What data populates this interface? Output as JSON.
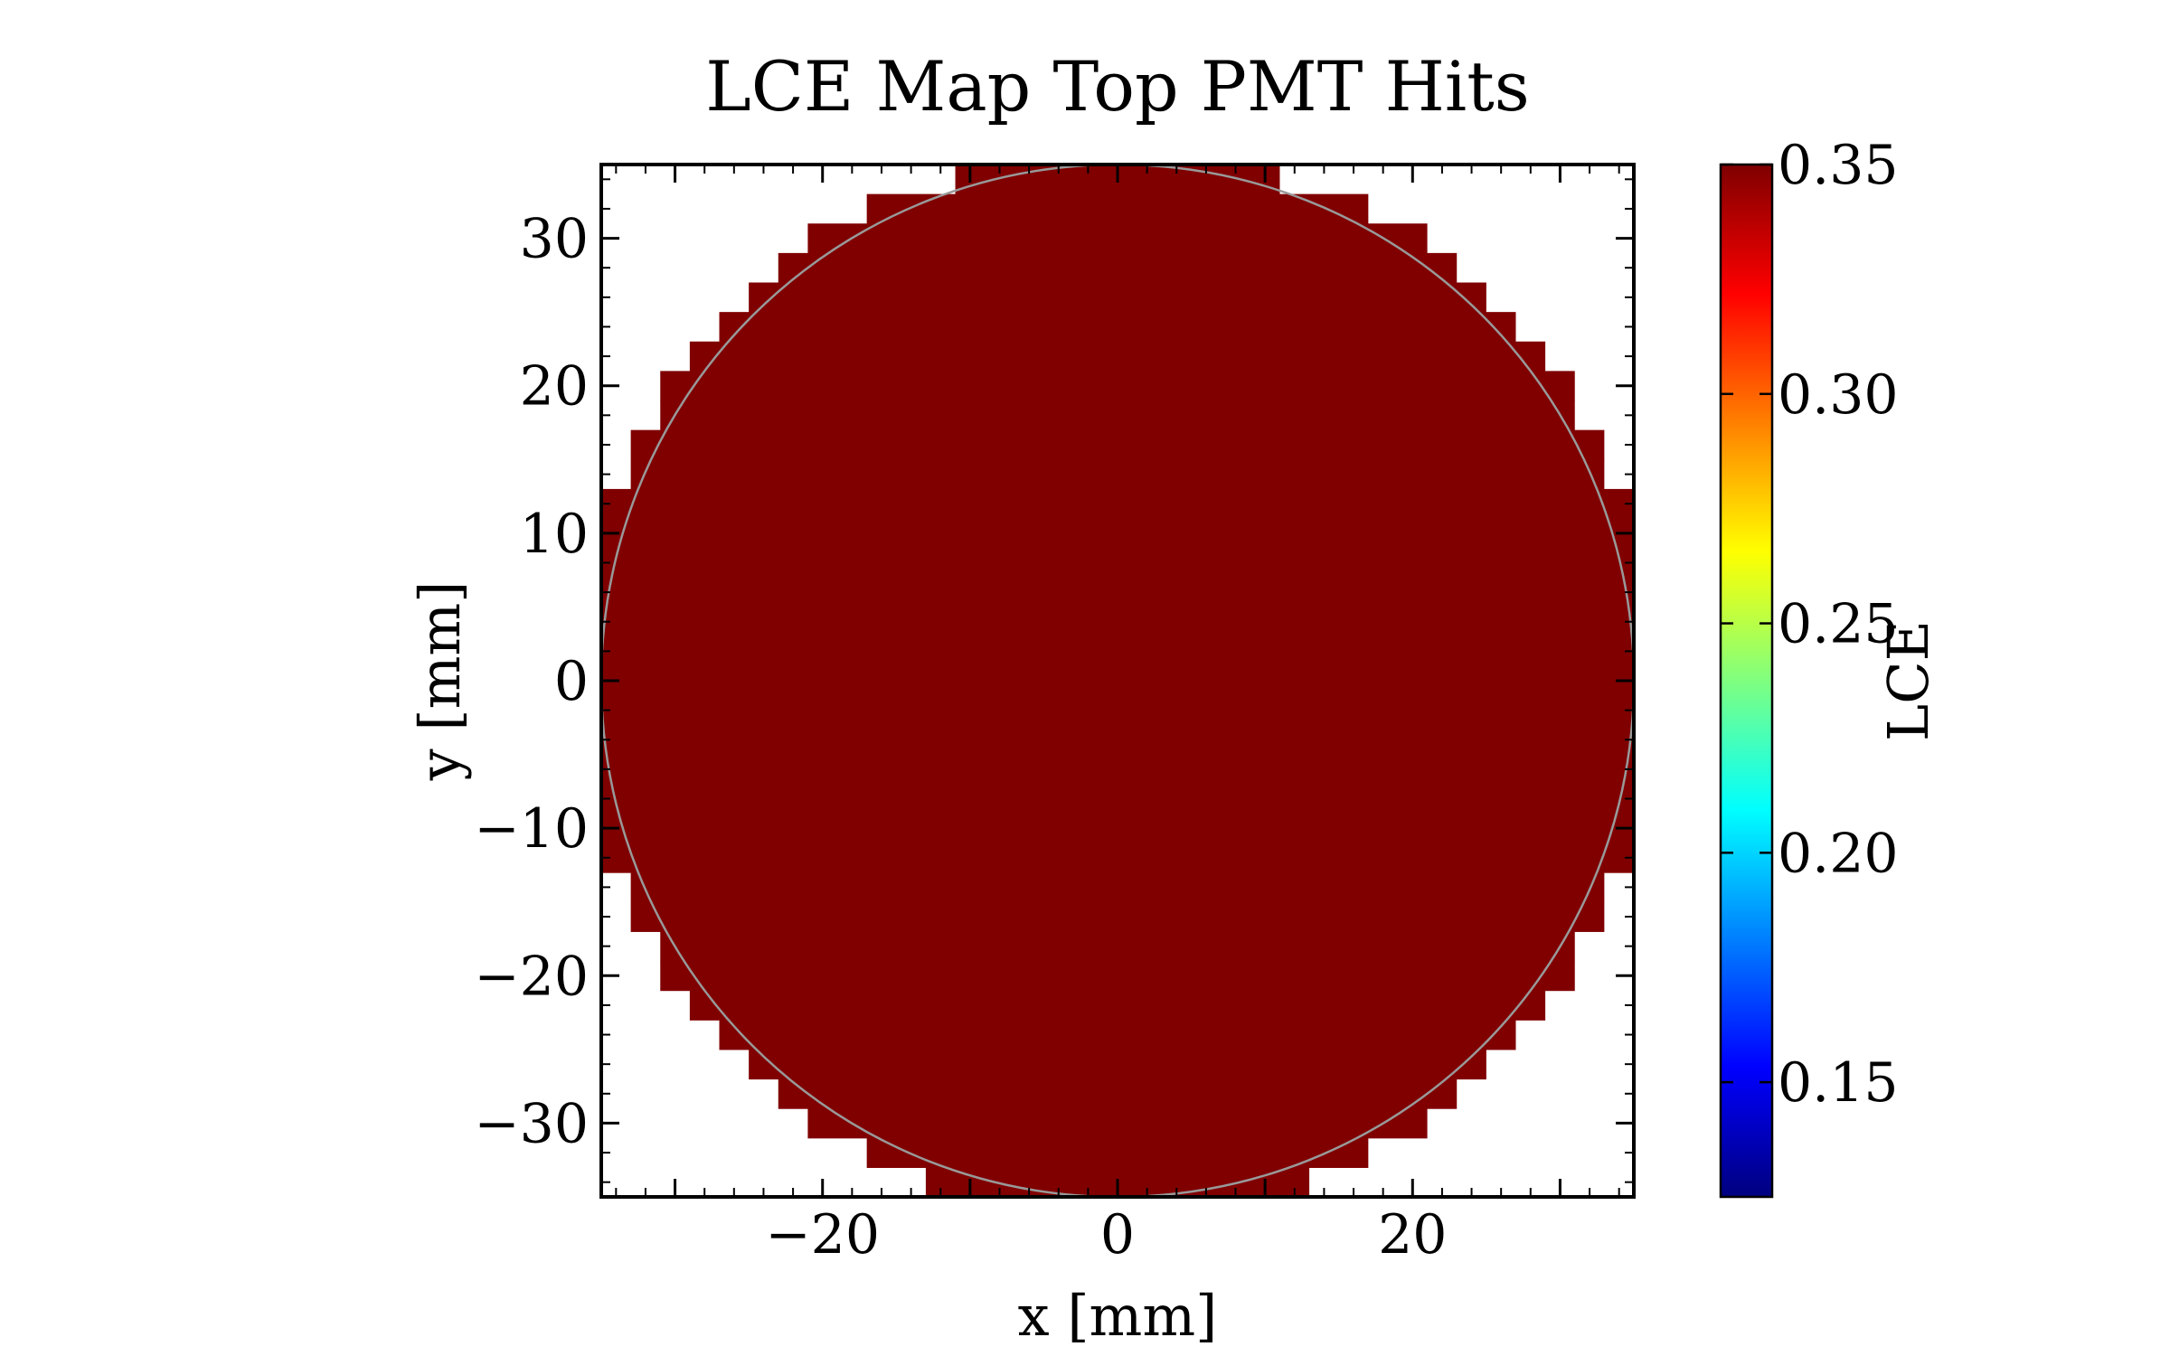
{
  "chart_data": {
    "type": "heatmap",
    "title": "LCE Map Top PMT Hits",
    "xlabel": "x [mm]",
    "ylabel": "y [mm]",
    "xlim": [
      -35,
      35
    ],
    "ylim": [
      -35,
      35
    ],
    "x_ticks": [
      -20,
      0,
      20
    ],
    "x_tick_labels": [
      "−20",
      "0",
      "20"
    ],
    "y_ticks": [
      -30,
      -20,
      -10,
      0,
      10,
      20,
      30
    ],
    "y_tick_labels": [
      "−30",
      "−20",
      "−10",
      "0",
      "10",
      "20",
      "30"
    ],
    "grid": false,
    "bin_size_mm": 2,
    "fill_value": 0.35,
    "fill_color": "#800000",
    "detector_radius_mm": 35,
    "outline_color": "#999999",
    "row_extents": [
      {
        "y": [
          33,
          35
        ],
        "x": [
          -11,
          11
        ]
      },
      {
        "y": [
          31,
          33
        ],
        "x": [
          -17,
          17
        ]
      },
      {
        "y": [
          29,
          31
        ],
        "x": [
          -21,
          21
        ]
      },
      {
        "y": [
          27,
          29
        ],
        "x": [
          -23,
          23
        ]
      },
      {
        "y": [
          25,
          27
        ],
        "x": [
          -25,
          25
        ]
      },
      {
        "y": [
          23,
          25
        ],
        "x": [
          -27,
          27
        ]
      },
      {
        "y": [
          21,
          23
        ],
        "x": [
          -29,
          29
        ]
      },
      {
        "y": [
          19,
          21
        ],
        "x": [
          -31,
          31
        ]
      },
      {
        "y": [
          17,
          19
        ],
        "x": [
          -31,
          31
        ]
      },
      {
        "y": [
          15,
          17
        ],
        "x": [
          -33,
          33
        ]
      },
      {
        "y": [
          13,
          15
        ],
        "x": [
          -33,
          33
        ]
      },
      {
        "y": [
          -13,
          13
        ],
        "x": [
          -35,
          35
        ]
      },
      {
        "y": [
          -15,
          -13
        ],
        "x": [
          -33,
          33
        ]
      },
      {
        "y": [
          -17,
          -15
        ],
        "x": [
          -33,
          33
        ]
      },
      {
        "y": [
          -19,
          -17
        ],
        "x": [
          -31,
          31
        ]
      },
      {
        "y": [
          -21,
          -19
        ],
        "x": [
          -31,
          31
        ]
      },
      {
        "y": [
          -23,
          -21
        ],
        "x": [
          -29,
          29
        ]
      },
      {
        "y": [
          -25,
          -23
        ],
        "x": [
          -27,
          27
        ]
      },
      {
        "y": [
          -27,
          -25
        ],
        "x": [
          -25,
          25
        ]
      },
      {
        "y": [
          -29,
          -27
        ],
        "x": [
          -23,
          23
        ]
      },
      {
        "y": [
          -31,
          -29
        ],
        "x": [
          -21,
          21
        ]
      },
      {
        "y": [
          -33,
          -31
        ],
        "x": [
          -17,
          17
        ]
      },
      {
        "y": [
          -35,
          -33
        ],
        "x": [
          -13,
          13
        ]
      }
    ],
    "colorbar": {
      "label": "LCE",
      "range": [
        0.125,
        0.35
      ],
      "ticks": [
        0.15,
        0.2,
        0.25,
        0.3,
        0.35
      ],
      "tick_labels": [
        "0.15",
        "0.20",
        "0.25",
        "0.30",
        "0.35"
      ],
      "colormap": "jet"
    }
  }
}
